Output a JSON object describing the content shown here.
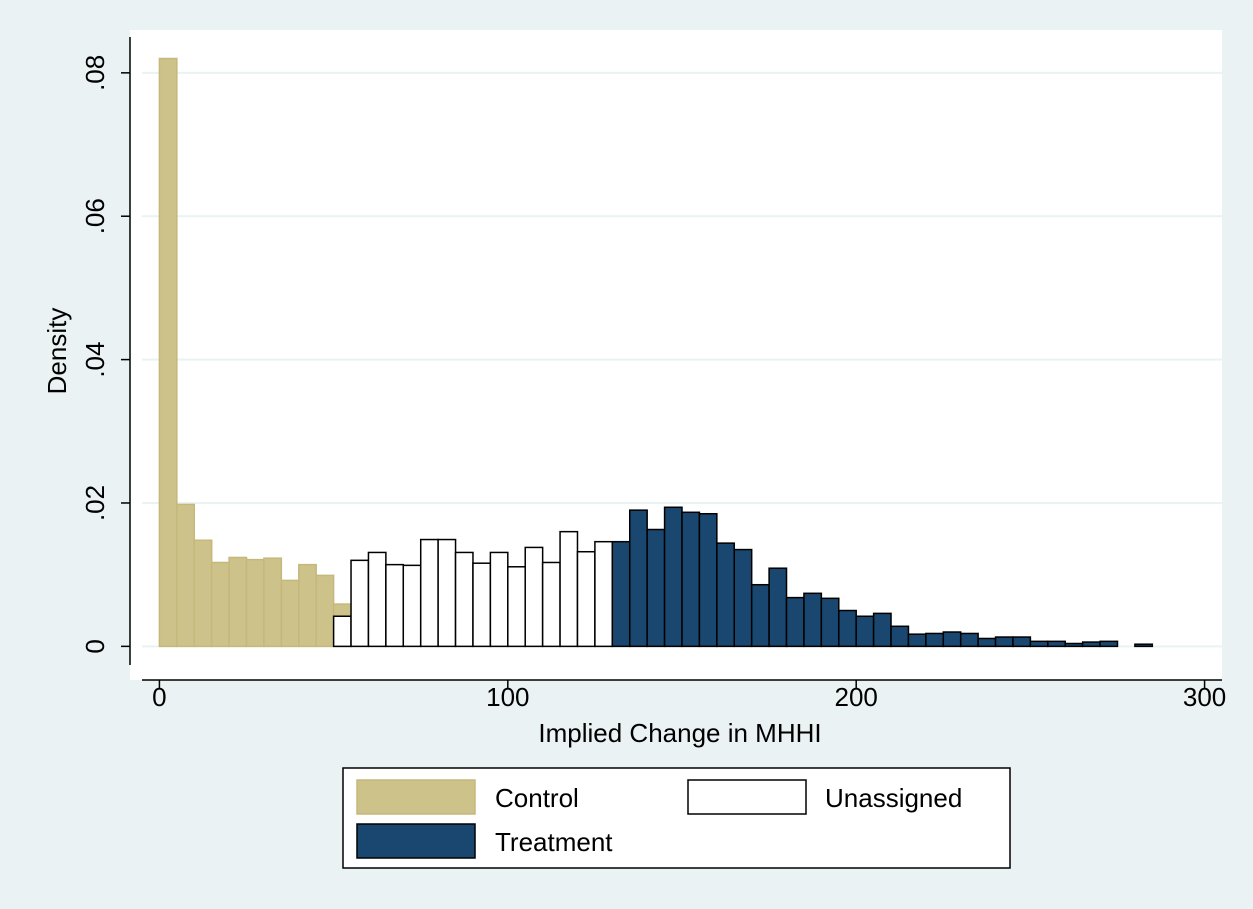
{
  "chart_data": {
    "type": "histogram",
    "xlabel": "Implied Change in MHHI",
    "ylabel": "Density",
    "xlim": [
      -5,
      305
    ],
    "ylim": [
      -0.0026,
      0.085
    ],
    "xticks": [
      0,
      100,
      200,
      300
    ],
    "yticks": [
      0,
      {
        "value": 0.02,
        "label": ".02"
      },
      {
        "value": 0.04,
        "label": ".04"
      },
      {
        "value": 0.06,
        "label": ".06"
      },
      {
        "value": 0.08,
        "label": ".08"
      }
    ],
    "grid": true,
    "series": [
      {
        "name": "Control",
        "color": "#cdc28a",
        "edgecolor": "#c5b87c",
        "bins": [
          0,
          5,
          10,
          15,
          20,
          25,
          30,
          35,
          40,
          45,
          50,
          55
        ],
        "values": [
          0.082,
          0.0198,
          0.0148,
          0.0117,
          0.0124,
          0.0121,
          0.0123,
          0.0092,
          0.0114,
          0.0099,
          0.0059
        ]
      },
      {
        "name": "Unassigned",
        "color": "#ffffff",
        "edgecolor": "#000000",
        "bins": [
          50,
          55,
          60,
          65,
          70,
          75,
          80,
          85,
          90,
          95,
          100,
          105,
          110,
          115,
          120,
          125,
          130
        ],
        "values": [
          0.0042,
          0.012,
          0.0131,
          0.0114,
          0.0113,
          0.0149,
          0.0149,
          0.0131,
          0.0116,
          0.0131,
          0.0111,
          0.0138,
          0.0117,
          0.016,
          0.0132,
          0.0146
        ]
      },
      {
        "name": "Treatment",
        "color": "#1a476f",
        "edgecolor": "#000000",
        "bins": [
          130,
          135,
          140,
          145,
          150,
          155,
          160,
          165,
          170,
          175,
          180,
          185,
          190,
          195,
          200,
          205,
          210,
          215,
          220,
          225,
          230,
          235,
          240,
          245,
          250,
          255,
          260,
          265,
          270,
          275,
          280,
          285
        ],
        "values": [
          0.0146,
          0.019,
          0.0163,
          0.0194,
          0.0187,
          0.0185,
          0.0144,
          0.0135,
          0.0086,
          0.0109,
          0.0068,
          0.0074,
          0.0067,
          0.005,
          0.0042,
          0.0046,
          0.0028,
          0.0017,
          0.0018,
          0.002,
          0.0018,
          0.0011,
          0.0013,
          0.0013,
          0.0007,
          0.0007,
          0.0004,
          0.0006,
          0.0007,
          0,
          0.0003
        ]
      }
    ]
  }
}
